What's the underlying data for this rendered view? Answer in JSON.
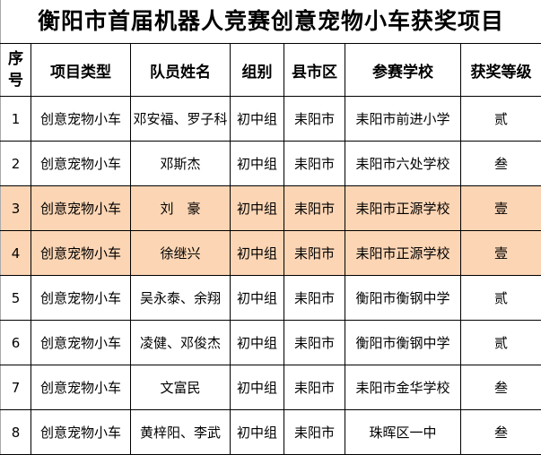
{
  "title": "衡阳市首届机器人竞赛创意宠物小车获奖项目",
  "highlight_color": "#fcd5b4",
  "columns": [
    "序号",
    "项目类型",
    "队员姓名",
    "组别",
    "县市区",
    "参赛学校",
    "获奖等级"
  ],
  "rows": [
    {
      "no": "1",
      "type": "创意宠物小车",
      "members": "邓安福、罗子科",
      "group": "初中组",
      "county": "耒阳市",
      "school": "耒阳市前进小学",
      "award": "贰",
      "highlight": false
    },
    {
      "no": "2",
      "type": "创意宠物小车",
      "members": "邓斯杰",
      "group": "初中组",
      "county": "耒阳市",
      "school": "耒阳市六处学校",
      "award": "叁",
      "highlight": false
    },
    {
      "no": "3",
      "type": "创意宠物小车",
      "members": "刘　豪",
      "group": "初中组",
      "county": "耒阳市",
      "school": "耒阳市正源学校",
      "award": "壹",
      "highlight": true
    },
    {
      "no": "4",
      "type": "创意宠物小车",
      "members": "徐继兴",
      "group": "初中组",
      "county": "耒阳市",
      "school": "耒阳市正源学校",
      "award": "壹",
      "highlight": true
    },
    {
      "no": "5",
      "type": "创意宠物小车",
      "members": "吴永泰、余翔",
      "group": "初中组",
      "county": "耒阳市",
      "school": "衡阳市衡钢中学",
      "award": "贰",
      "highlight": false
    },
    {
      "no": "6",
      "type": "创意宠物小车",
      "members": "凌健、邓俊杰",
      "group": "初中组",
      "county": "耒阳市",
      "school": "衡阳市衡钢中学",
      "award": "贰",
      "highlight": false
    },
    {
      "no": "7",
      "type": "创意宠物小车",
      "members": "文富民",
      "group": "初中组",
      "county": "耒阳市",
      "school": "耒阳市金华学校",
      "award": "叁",
      "highlight": false
    },
    {
      "no": "8",
      "type": "创意宠物小车",
      "members": "黄梓阳、李武",
      "group": "初中组",
      "county": "耒阳市",
      "school": "珠晖区一中",
      "award": "叁",
      "highlight": false
    }
  ]
}
